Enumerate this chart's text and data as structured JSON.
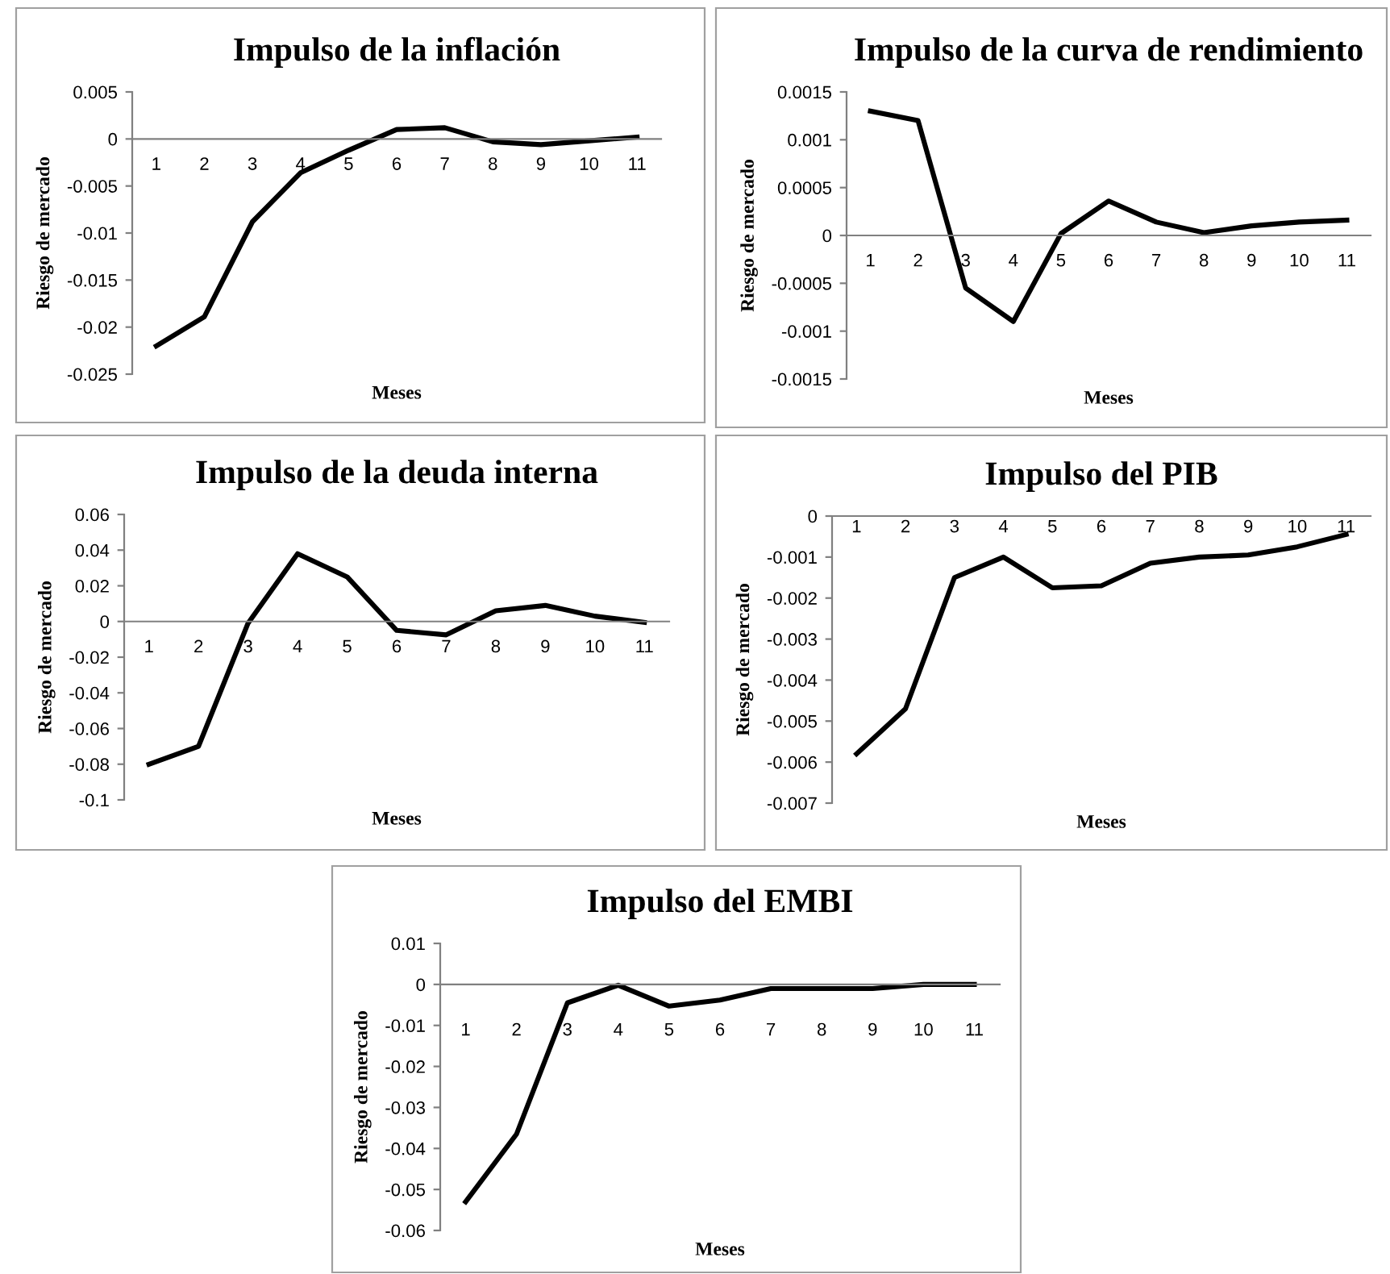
{
  "chart_data": [
    {
      "type": "line",
      "title": "Impulso de la inflación",
      "xlabel": "Meses",
      "ylabel": "Riesgo de mercado",
      "categories": [
        "1",
        "2",
        "3",
        "4",
        "5",
        "6",
        "7",
        "8",
        "9",
        "10",
        "11"
      ],
      "series": [
        {
          "color": "#000000",
          "values": [
            -0.022,
            -0.0189,
            -0.0088,
            -0.0036,
            -0.0012,
            0.001,
            0.0012,
            -0.0003,
            -0.0006,
            -0.0002,
            0.0002
          ]
        }
      ],
      "ylim": [
        -0.025,
        0.005
      ],
      "yticks": [
        -0.025,
        -0.02,
        -0.015,
        -0.01,
        -0.005,
        0,
        0.005
      ],
      "grid": false,
      "legend": false,
      "marker": "none",
      "line_style": "solid"
    },
    {
      "type": "line",
      "title": "Impulso de la curva de rendimiento",
      "xlabel": "Meses",
      "ylabel": "Riesgo de mercado",
      "categories": [
        "1",
        "2",
        "3",
        "4",
        "5",
        "6",
        "7",
        "8",
        "9",
        "10",
        "11"
      ],
      "series": [
        {
          "color": "#000000",
          "values": [
            0.0013,
            0.0012,
            -0.00055,
            -0.0009,
            2e-05,
            0.00036,
            0.00014,
            3e-05,
            0.0001,
            0.00014,
            0.00016
          ]
        }
      ],
      "ylim": [
        -0.0015,
        0.0015
      ],
      "yticks": [
        -0.0015,
        -0.001,
        -0.0005,
        0,
        0.0005,
        0.001,
        0.0015
      ],
      "grid": false,
      "legend": false,
      "marker": "none",
      "line_style": "solid"
    },
    {
      "type": "line",
      "title": "Impulso de la deuda interna",
      "xlabel": "Meses",
      "ylabel": "Riesgo de mercado",
      "categories": [
        "1",
        "2",
        "3",
        "4",
        "5",
        "6",
        "7",
        "8",
        "9",
        "10",
        "11"
      ],
      "series": [
        {
          "color": "#000000",
          "values": [
            -0.08,
            -0.07,
            -0.001,
            0.038,
            0.025,
            -0.005,
            -0.0075,
            0.006,
            0.009,
            0.003,
            -0.0005
          ]
        }
      ],
      "ylim": [
        -0.1,
        0.06
      ],
      "yticks": [
        -0.1,
        -0.08,
        -0.06,
        -0.04,
        -0.02,
        0,
        0.02,
        0.04,
        0.06
      ],
      "grid": false,
      "legend": false,
      "marker": "none",
      "line_style": "solid"
    },
    {
      "type": "line",
      "title": "Impulso del PIB",
      "xlabel": "Meses",
      "ylabel": "Riesgo de mercado",
      "categories": [
        "1",
        "2",
        "3",
        "4",
        "5",
        "6",
        "7",
        "8",
        "9",
        "10",
        "11"
      ],
      "series": [
        {
          "color": "#000000",
          "values": [
            -0.0058,
            -0.0047,
            -0.0015,
            -0.001,
            -0.00175,
            -0.0017,
            -0.00115,
            -0.001,
            -0.00095,
            -0.00075,
            -0.00045
          ]
        }
      ],
      "ylim": [
        -0.007,
        0
      ],
      "yticks": [
        -0.007,
        -0.006,
        -0.005,
        -0.004,
        -0.003,
        -0.002,
        -0.001,
        0
      ],
      "grid": false,
      "legend": false,
      "marker": "none",
      "line_style": "solid"
    },
    {
      "type": "line",
      "title": "Impulso del EMBI",
      "xlabel": "Meses",
      "ylabel": "Riesgo de mercado",
      "categories": [
        "1",
        "2",
        "3",
        "4",
        "5",
        "6",
        "7",
        "8",
        "9",
        "10",
        "11"
      ],
      "series": [
        {
          "color": "#000000",
          "values": [
            -0.053,
            -0.0365,
            -0.0045,
            -0.0002,
            -0.0053,
            -0.0038,
            -0.001,
            -0.001,
            -0.001,
            0,
            0
          ]
        }
      ],
      "ylim": [
        -0.06,
        0.01
      ],
      "yticks": [
        -0.06,
        -0.05,
        -0.04,
        -0.03,
        -0.02,
        -0.01,
        0,
        0.01
      ],
      "grid": false,
      "legend": false,
      "marker": "none",
      "line_style": "solid"
    }
  ]
}
